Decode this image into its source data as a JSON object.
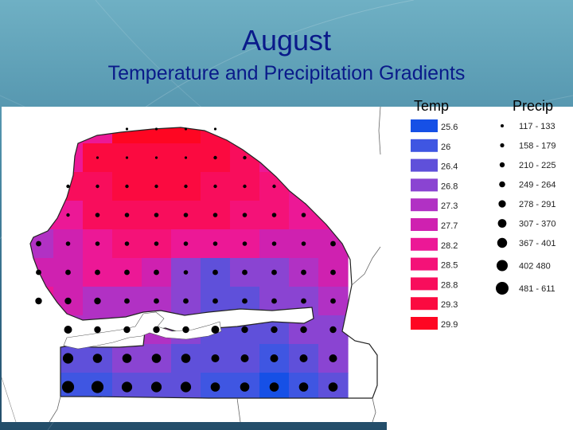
{
  "title": "August",
  "subtitle": "Temperature and Precipitation Gradients",
  "legend": {
    "temp_header": "Temp",
    "precip_header": "Precip",
    "temp_classes": [
      {
        "label": "25.6",
        "color": "#1650e6"
      },
      {
        "label": "26",
        "color": "#3f56e2"
      },
      {
        "label": "26.4",
        "color": "#5f50da"
      },
      {
        "label": "26.8",
        "color": "#8a44d2"
      },
      {
        "label": "27.3",
        "color": "#b131c4"
      },
      {
        "label": "27.7",
        "color": "#cf21b0"
      },
      {
        "label": "28.2",
        "color": "#ec1896"
      },
      {
        "label": "28.5",
        "color": "#f41278"
      },
      {
        "label": "28.8",
        "color": "#f80d5c"
      },
      {
        "label": "29.3",
        "color": "#fb0a40"
      },
      {
        "label": "29.9",
        "color": "#fe0622"
      }
    ],
    "precip_classes": [
      {
        "label": "117 - 133",
        "level": 1
      },
      {
        "label": "158 - 179",
        "level": 2
      },
      {
        "label": "210 - 225",
        "level": 3
      },
      {
        "label": "249 - 264",
        "level": 4
      },
      {
        "label": "278 - 291",
        "level": 5
      },
      {
        "label": "307 - 370",
        "level": 6
      },
      {
        "label": "367 - 401",
        "level": 7
      },
      {
        "label": "402   480",
        "level": 8
      },
      {
        "label": "481 - 611",
        "level": 9
      }
    ]
  },
  "map": {
    "temp_grid": [
      [
        null,
        null,
        null,
        "29.9",
        "29.9",
        "29.9",
        "29.3",
        null,
        null,
        null,
        null
      ],
      [
        null,
        null,
        "29.3",
        "29.3",
        "29.3",
        "29.3",
        "29.3",
        "28.8",
        null,
        null,
        null
      ],
      [
        null,
        "28.8",
        "28.8",
        "29.3",
        "29.3",
        "29.3",
        "28.8",
        "28.8",
        "28.5",
        null,
        null
      ],
      [
        null,
        "28.2",
        "28.8",
        "28.8",
        "28.8",
        "28.8",
        "28.8",
        "28.5",
        "28.5",
        "28.2",
        null
      ],
      [
        "27.3",
        "27.7",
        "28.2",
        "28.5",
        "28.5",
        "28.2",
        "28.2",
        "28.2",
        "27.7",
        "27.7",
        "27.7"
      ],
      [
        "27.7",
        "27.7",
        "28.2",
        "28.2",
        "27.7",
        "26.8",
        "26.4",
        "26.8",
        "26.8",
        "27.3",
        "27.7"
      ],
      [
        "28.2",
        "27.7",
        "27.3",
        "27.3",
        "27.3",
        "26.8",
        "26.4",
        "26.4",
        "26.8",
        "26.8",
        "27.3"
      ],
      [
        null,
        "27.3",
        "27.3",
        "27.3",
        "27.3",
        "26.8",
        "26.4",
        "26.4",
        "26.4",
        "26.8",
        "26.8"
      ],
      [
        null,
        "26.4",
        "26.4",
        "26.8",
        "26.8",
        "26.4",
        "26.4",
        "26.4",
        "26.0",
        "26.4",
        "26.8"
      ],
      [
        null,
        "26.0",
        "26.0",
        "26.4",
        "26.4",
        "26.4",
        "26.0",
        "26.0",
        "25.6",
        "26.0",
        "26.4"
      ]
    ],
    "precip_grid": [
      [
        0,
        0,
        0,
        1,
        1,
        1,
        1,
        0,
        0,
        0,
        0
      ],
      [
        0,
        0,
        1,
        1,
        1,
        1,
        2,
        2,
        0,
        0,
        0
      ],
      [
        0,
        2,
        2,
        2,
        2,
        2,
        2,
        2,
        2,
        0,
        0
      ],
      [
        0,
        2,
        3,
        3,
        3,
        3,
        3,
        3,
        3,
        3,
        0
      ],
      [
        4,
        3,
        3,
        3,
        3,
        3,
        3,
        3,
        3,
        3,
        4
      ],
      [
        4,
        4,
        4,
        4,
        4,
        3,
        4,
        4,
        4,
        4,
        4
      ],
      [
        5,
        5,
        5,
        4,
        4,
        4,
        4,
        4,
        4,
        4,
        4
      ],
      [
        0,
        6,
        5,
        5,
        5,
        5,
        6,
        5,
        5,
        5,
        5
      ],
      [
        0,
        8,
        7,
        7,
        7,
        7,
        6,
        6,
        6,
        6,
        6
      ],
      [
        0,
        9,
        9,
        8,
        8,
        8,
        7,
        7,
        7,
        7,
        7
      ]
    ]
  }
}
